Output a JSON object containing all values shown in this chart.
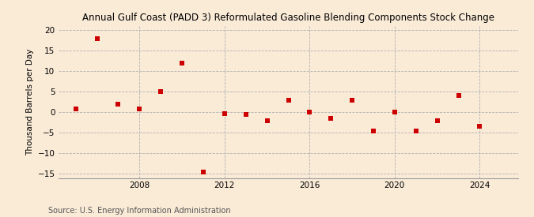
{
  "title": "Annual Gulf Coast (PADD 3) Reformulated Gasoline Blending Components Stock Change",
  "ylabel": "Thousand Barrels per Day",
  "source": "Source: U.S. Energy Information Administration",
  "background_color": "#faebd7",
  "plot_background_color": "#faebd7",
  "marker_color": "#cc0000",
  "marker": "s",
  "marker_size": 4,
  "xlim": [
    2004.2,
    2025.8
  ],
  "ylim": [
    -16,
    21
  ],
  "yticks": [
    -15,
    -10,
    -5,
    0,
    5,
    10,
    15,
    20
  ],
  "xticks": [
    2008,
    2012,
    2016,
    2020,
    2024
  ],
  "grid_color": "#b0b0b0",
  "x": [
    2005,
    2006,
    2007,
    2008,
    2009,
    2010,
    2011,
    2012,
    2013,
    2014,
    2015,
    2016,
    2017,
    2018,
    2019,
    2020,
    2021,
    2022,
    2023,
    2024
  ],
  "y": [
    0.8,
    18.0,
    2.0,
    0.9,
    5.0,
    12.0,
    -14.5,
    -0.3,
    -0.5,
    -2.0,
    3.0,
    0.0,
    -1.5,
    3.0,
    -4.5,
    0.0,
    -4.5,
    -2.0,
    4.0,
    -3.5
  ],
  "title_fontsize": 8.5,
  "ylabel_fontsize": 7.5,
  "tick_fontsize": 7.5,
  "source_fontsize": 7
}
